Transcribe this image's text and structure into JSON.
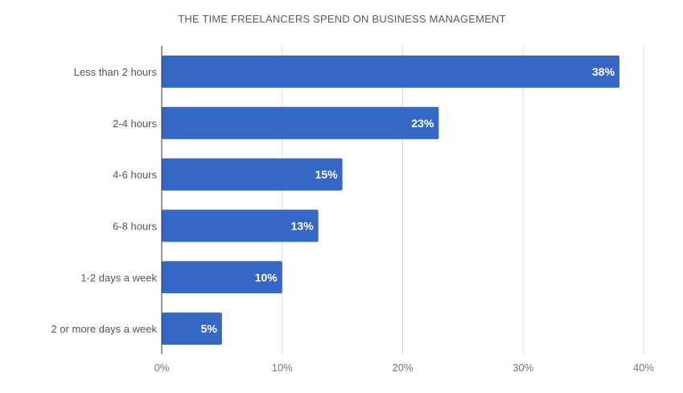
{
  "chart_data": {
    "type": "bar",
    "orientation": "horizontal",
    "title": "THE TIME FREELANCERS SPEND ON BUSINESS MANAGEMENT",
    "categories": [
      "Less than 2 hours",
      "2-4 hours",
      "4-6 hours",
      "6-8 hours",
      "1-2 days a week",
      "2 or more days a week"
    ],
    "values": [
      38,
      23,
      15,
      13,
      10,
      5
    ],
    "data_labels": [
      "38%",
      "23%",
      "15%",
      "13%",
      "10%",
      "5%"
    ],
    "xlim": [
      0,
      40
    ],
    "x_ticks": [
      0,
      10,
      20,
      30,
      40
    ],
    "x_tick_labels": [
      "0%",
      "10%",
      "20%",
      "30%",
      "40%"
    ],
    "xlabel": "",
    "ylabel": "",
    "grid": true,
    "legend": "none",
    "bar_color": "#3567c6"
  }
}
